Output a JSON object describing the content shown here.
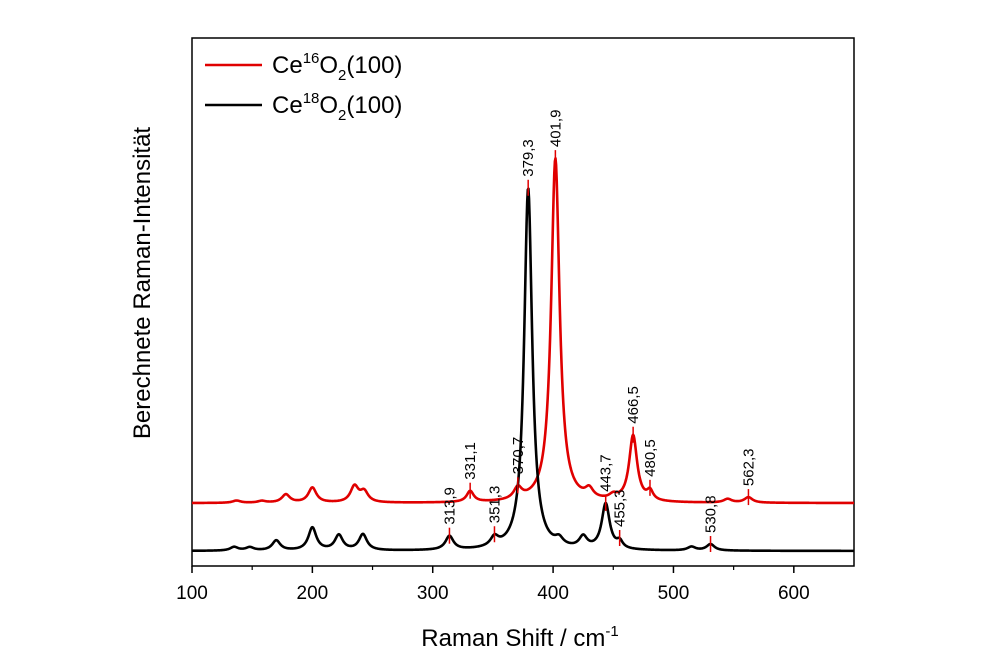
{
  "chart_data": {
    "type": "line",
    "xlabel": "Raman Shift / cm",
    "xlabel_sup": "-1",
    "ylabel": "Berechnete Raman-Intensität",
    "xlim": [
      100,
      650
    ],
    "xticks": [
      "100",
      "200",
      "300",
      "400",
      "500",
      "600"
    ],
    "y_tick_labels": "none",
    "legend": "top-left",
    "series": [
      {
        "name": "Ce16O2(100)",
        "legend_parts": {
          "base": "Ce",
          "sup": "16",
          "mid": "O",
          "sub": "2",
          "tail": "(100)"
        },
        "color": "#e00000",
        "baseline": 0.105,
        "peaks": [
          {
            "x": 137,
            "y": 0.005,
            "w": 4
          },
          {
            "x": 158,
            "y": 0.004,
            "w": 4
          },
          {
            "x": 178,
            "y": 0.018,
            "w": 4
          },
          {
            "x": 200,
            "y": 0.033,
            "w": 4
          },
          {
            "x": 235,
            "y": 0.035,
            "w": 4
          },
          {
            "x": 243,
            "y": 0.023,
            "w": 4
          },
          {
            "x": 331.1,
            "y": 0.024,
            "w": 3.5
          },
          {
            "x": 370.7,
            "y": 0.025,
            "w": 4
          },
          {
            "x": 401.9,
            "y": 0.755,
            "w": 4.2
          },
          {
            "x": 430,
            "y": 0.02,
            "w": 4
          },
          {
            "x": 450,
            "y": 0.01,
            "w": 4
          },
          {
            "x": 466.5,
            "y": 0.145,
            "w": 4
          },
          {
            "x": 480.5,
            "y": 0.02,
            "w": 3
          },
          {
            "x": 545,
            "y": 0.008,
            "w": 4
          },
          {
            "x": 562.3,
            "y": 0.012,
            "w": 4
          }
        ]
      },
      {
        "name": "Ce18O2(100)",
        "legend_parts": {
          "base": "Ce",
          "sup": "18",
          "mid": "O",
          "sub": "2",
          "tail": "(100)"
        },
        "color": "#000000",
        "baseline": 0.0,
        "peaks": [
          {
            "x": 135,
            "y": 0.008,
            "w": 4
          },
          {
            "x": 148,
            "y": 0.007,
            "w": 4
          },
          {
            "x": 170,
            "y": 0.022,
            "w": 4
          },
          {
            "x": 200,
            "y": 0.05,
            "w": 4
          },
          {
            "x": 222,
            "y": 0.033,
            "w": 4
          },
          {
            "x": 242,
            "y": 0.035,
            "w": 4
          },
          {
            "x": 313.9,
            "y": 0.03,
            "w": 4
          },
          {
            "x": 351.3,
            "y": 0.02,
            "w": 4
          },
          {
            "x": 379.3,
            "y": 0.795,
            "w": 4
          },
          {
            "x": 405,
            "y": 0.015,
            "w": 4
          },
          {
            "x": 425,
            "y": 0.025,
            "w": 4
          },
          {
            "x": 443.7,
            "y": 0.1,
            "w": 4
          },
          {
            "x": 455.3,
            "y": 0.015,
            "w": 3
          },
          {
            "x": 515,
            "y": 0.008,
            "w": 4
          },
          {
            "x": 530.8,
            "y": 0.014,
            "w": 4
          }
        ]
      }
    ],
    "annotations": [
      {
        "series": 0,
        "x": 331.1,
        "label": "331,1"
      },
      {
        "series": 0,
        "x": 370.7,
        "label": "370,7"
      },
      {
        "series": 0,
        "x": 401.9,
        "label": "401,9"
      },
      {
        "series": 0,
        "x": 466.5,
        "label": "466,5"
      },
      {
        "series": 0,
        "x": 480.5,
        "label": "480,5"
      },
      {
        "series": 0,
        "x": 562.3,
        "label": "562,3"
      },
      {
        "series": 1,
        "x": 313.9,
        "label": "313,9"
      },
      {
        "series": 1,
        "x": 351.3,
        "label": "351,3"
      },
      {
        "series": 1,
        "x": 379.3,
        "label": "379,3"
      },
      {
        "series": 1,
        "x": 443.7,
        "label": "443,7"
      },
      {
        "series": 1,
        "x": 455.3,
        "label": "455,3"
      },
      {
        "series": 1,
        "x": 530.8,
        "label": "530,8"
      }
    ],
    "marker_color": "#e00000"
  }
}
